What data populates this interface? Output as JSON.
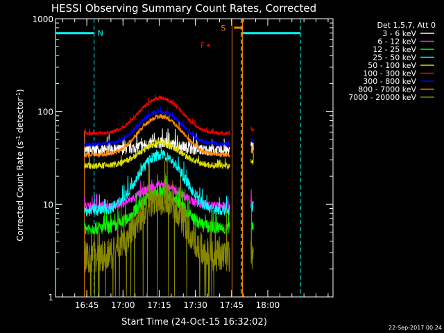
{
  "chart_data": {
    "type": "line",
    "title": "HESSI Observing Summary Count Rates, Corrected",
    "ylabel_parts": [
      "Corrected Count Rate (s",
      "-1",
      " detector",
      "-1",
      ")"
    ],
    "xlabel": "Start Time (24-Oct-15 16:32:02)",
    "yscale": "log",
    "ylim": [
      1,
      1000
    ],
    "xlim_minutes_after_start": [
      0,
      115
    ],
    "y_ticks": [
      {
        "value": 1,
        "label": "1"
      },
      {
        "value": 10,
        "label": "10"
      },
      {
        "value": 100,
        "label": "100"
      },
      {
        "value": 1000,
        "label": "1000"
      }
    ],
    "x_ticks": [
      {
        "minute": 12.97,
        "label": "16:45"
      },
      {
        "minute": 27.97,
        "label": "17:00"
      },
      {
        "minute": 42.97,
        "label": "17:15"
      },
      {
        "minute": 57.97,
        "label": "17:30"
      },
      {
        "minute": 72.97,
        "label": "17:45"
      },
      {
        "minute": 87.97,
        "label": "18:00"
      }
    ],
    "legend_title": "Det 1,5,7, Att 0",
    "legend_position": "right",
    "series": [
      {
        "name": "3 - 6 keV",
        "color": "#ffffff",
        "base": 38,
        "peak": 46,
        "noise": 0.12
      },
      {
        "name": "6 - 12 keV",
        "color": "#ff22ff",
        "base": 9.5,
        "peak": 16,
        "noise": 0.1
      },
      {
        "name": "12 - 25 keV",
        "color": "#00ff00",
        "base": 5.5,
        "peak": 13.5,
        "noise": 0.14
      },
      {
        "name": "25 - 50 keV",
        "color": "#00ffff",
        "base": 8.5,
        "peak": 34,
        "noise": 0.12
      },
      {
        "name": "50 - 100 keV",
        "color": "#dddd00",
        "base": 26,
        "peak": 45,
        "noise": 0.07
      },
      {
        "name": "100 - 300 keV",
        "color": "#ff0000",
        "base": 58,
        "peak": 140,
        "noise": 0.04
      },
      {
        "name": "300 - 800 keV",
        "color": "#0000ff",
        "base": 44,
        "peak": 100,
        "noise": 0.05
      },
      {
        "name": "800 - 7000 keV",
        "color": "#ff8800",
        "base": 34,
        "peak": 88,
        "noise": 0.05
      },
      {
        "name": "7000 - 20000 keV",
        "color": "#888800",
        "base": 2.7,
        "peak": 11.5,
        "noise": 0.35
      }
    ],
    "data_segments_minutes": [
      [
        12.0,
        72.3
      ],
      [
        81.0,
        82.0
      ]
    ],
    "flare_peak_minute": 43.5,
    "flare_width_minutes": 7.5,
    "annotations": [
      {
        "label": "N",
        "color": "#00ffff",
        "minute": 16.0,
        "level": 700
      },
      {
        "label": "S",
        "color": "#ff8800",
        "minute": 72.0,
        "level": 800
      },
      {
        "label": "F",
        "color": "#ff0000",
        "minute": 60.0,
        "level": 520
      }
    ],
    "night_markers_minutes": [
      0.0,
      16.0,
      77.0,
      101.5
    ],
    "saa_marker_minutes": [
      74.0,
      77.5
    ],
    "grid": false
  },
  "timestamp": "22-Sep-2017 00:24"
}
